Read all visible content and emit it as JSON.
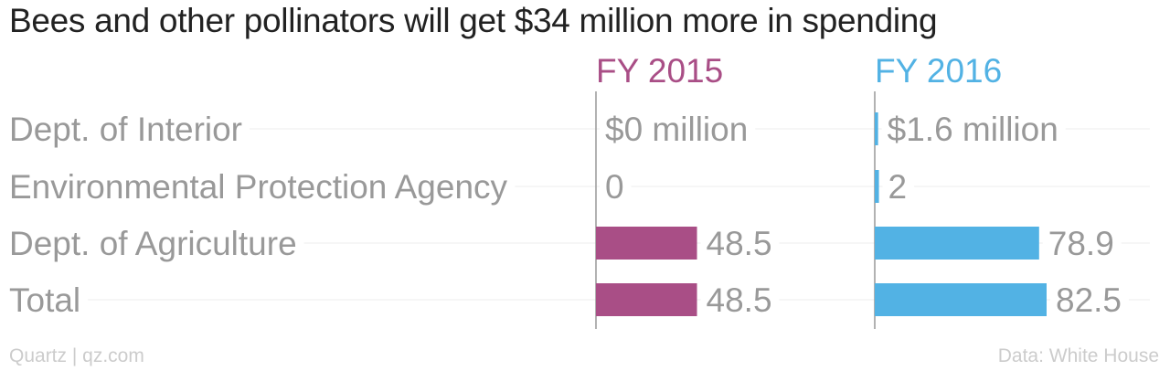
{
  "title": "Bees and other pollinators will get $34 million more in spending",
  "source": "Quartz | qz.com",
  "credit": "Data: White House",
  "chart_data": {
    "type": "bar",
    "orientation": "horizontal",
    "title": "Bees and other pollinators will get $34 million more in spending",
    "categories": [
      "Dept. of Interior",
      "Environmental Protection Agency",
      "Dept. of Agriculture",
      "Total"
    ],
    "series": [
      {
        "name": "FY 2015",
        "color": "#a94e86",
        "values": [
          0,
          0,
          48.5,
          48.5
        ],
        "value_labels": [
          "$0 million",
          "0",
          "48.5",
          "48.5"
        ]
      },
      {
        "name": "FY 2016",
        "color": "#52b2e4",
        "values": [
          1.6,
          2,
          78.9,
          82.5
        ],
        "value_labels": [
          "$1.6 million",
          "2",
          "78.9",
          "82.5"
        ]
      }
    ],
    "xlim": [
      0,
      82.5
    ],
    "grid": false,
    "legend": "column headers"
  }
}
